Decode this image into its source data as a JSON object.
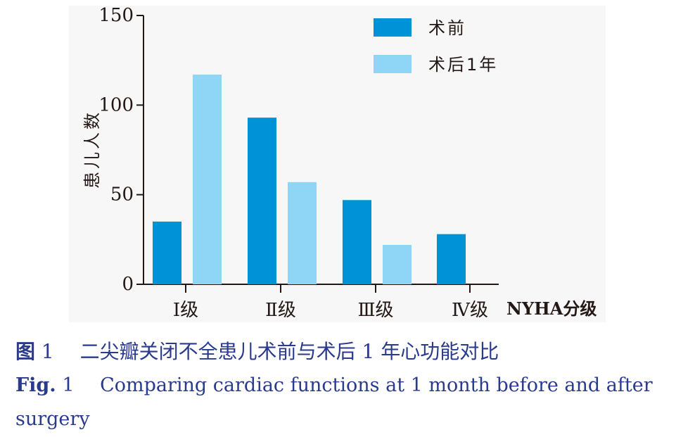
{
  "chart_data": {
    "type": "bar",
    "categories": [
      "Ⅰ级",
      "Ⅱ级",
      "Ⅲ级",
      "Ⅳ级"
    ],
    "series": [
      {
        "name": "术前",
        "values": [
          35,
          93,
          47,
          28
        ],
        "color": "#0092d7"
      },
      {
        "name": "术后1年",
        "values": [
          117,
          57,
          22,
          0
        ],
        "color": "#8fd5f5"
      }
    ],
    "xlabel": "NYHA分级",
    "ylabel": "患儿人数",
    "ylim": [
      0,
      150
    ],
    "yticks": [
      "0",
      "50",
      "100",
      "150"
    ],
    "legend_position": "top-right",
    "grid": false
  },
  "caption": {
    "cn_label": "图",
    "cn_num": "1",
    "cn_text": "二尖瓣关闭不全患儿术前与术后 1 年心功能对比",
    "en_label": "Fig.",
    "en_num": "1",
    "en_text": "Comparing cardiac functions at 1 month before and after surgery"
  }
}
